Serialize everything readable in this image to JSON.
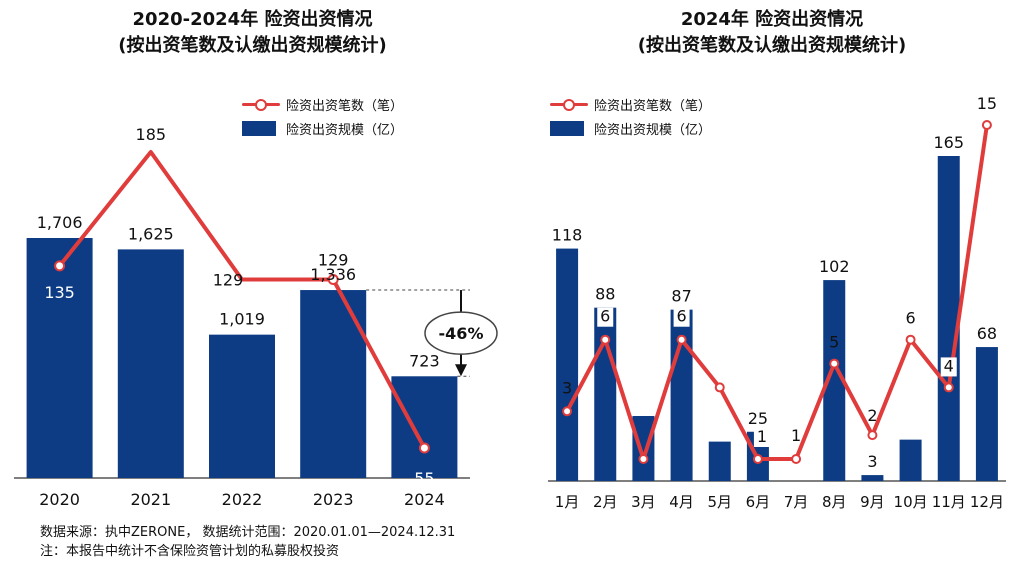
{
  "colors": {
    "bar": "#0d3c85",
    "line": "#e03c3c",
    "axis": "#333333"
  },
  "footer": {
    "source": "数据来源：执中ZERONE， 数据统计范围：2020.01.01—2024.12.31",
    "note": "注：本报告中统计不含保险资管计划的私募股权投资"
  },
  "chart_data": [
    {
      "type": "bar",
      "title": "2020-2024年 险资出资情况",
      "subtitle": "(按出资笔数及认缴出资规模统计)",
      "legend": [
        "险资出资笔数（笔）",
        "险资出资规模（亿）"
      ],
      "legend_position": "top-right",
      "categories": [
        "2020",
        "2021",
        "2022",
        "2023",
        "2024"
      ],
      "bar_values": [
        1706,
        1625,
        1019,
        1336,
        723
      ],
      "bar_labels": [
        "1,706",
        "1,625",
        "1,019",
        "1,336",
        "723"
      ],
      "line_values": [
        135,
        185,
        129,
        129,
        55
      ],
      "line_labels": [
        "135",
        "185",
        "129",
        "129",
        "55"
      ],
      "annotation": "-46%",
      "grid": false
    },
    {
      "type": "bar",
      "title": "2024年 险资出资情况",
      "subtitle": "(按出资笔数及认缴出资规模统计)",
      "legend": [
        "险资出资笔数（笔）",
        "险资出资规模（亿）"
      ],
      "legend_position": "top-left",
      "categories": [
        "1月",
        "2月",
        "3月",
        "4月",
        "5月",
        "6月",
        "7月",
        "8月",
        "9月",
        "10月",
        "11月",
        "12月"
      ],
      "bar_values": [
        118,
        88,
        33,
        87,
        20,
        25,
        0,
        102,
        3,
        21,
        165,
        68
      ],
      "bar_labels": [
        "118",
        "88",
        "",
        "87",
        "",
        "25",
        "",
        "102",
        "3",
        "",
        "165",
        "68"
      ],
      "line_values": [
        3,
        6,
        1,
        6,
        4,
        1,
        1,
        5,
        2,
        6,
        4,
        15
      ],
      "line_labels": [
        "3",
        "6",
        "",
        "6",
        "",
        "1",
        "1",
        "5",
        "2",
        "6",
        "4",
        "15"
      ],
      "grid": false
    }
  ]
}
